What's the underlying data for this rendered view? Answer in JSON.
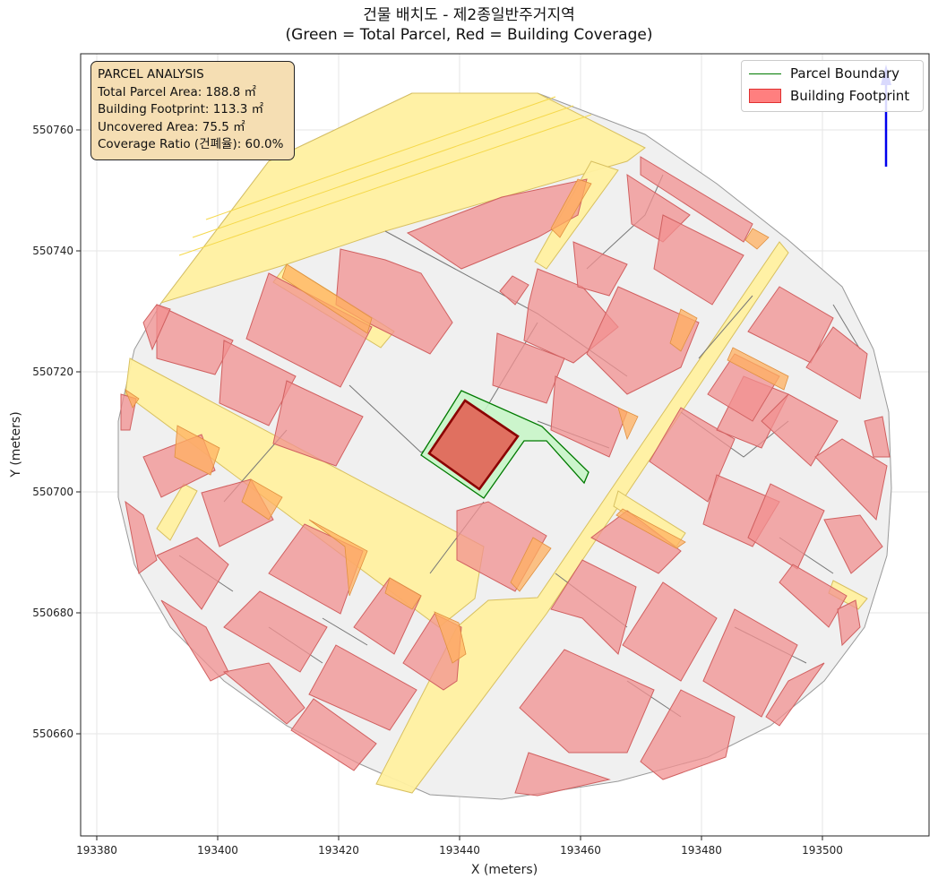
{
  "title": {
    "line1": "건물 배치도 - 제2종일반주거지역",
    "line2": "(Green = Total Parcel, Red = Building Coverage)"
  },
  "axes": {
    "xlabel": "X (meters)",
    "ylabel": "Y (meters)",
    "xticks": [
      "193380",
      "193400",
      "193420",
      "193440",
      "193460",
      "193480",
      "193500"
    ],
    "yticks": [
      "550660",
      "550680",
      "550700",
      "550720",
      "550740",
      "550760"
    ]
  },
  "info_box": {
    "heading": "PARCEL ANALYSIS",
    "total_parcel": "Total Parcel Area: 188.8 ㎡",
    "building_footprint": "Building Footprint: 113.3 ㎡",
    "uncovered": "Uncovered Area: 75.5 ㎡",
    "coverage": "Coverage Ratio (건폐율): 60.0%"
  },
  "legend": {
    "parcel_boundary": "Parcel Boundary",
    "building_footprint": "Building Footprint"
  },
  "colors": {
    "parcel_edge": "#007a00",
    "parcel_fill": "#c8f5c8",
    "building_fill": "#ff7f7f",
    "target_building": "#e07060",
    "road_fill": "#fff0a0",
    "block_fill": "#f0f0f0",
    "north_arrow": "#0000ee",
    "info_box_bg": "#f5deb3"
  },
  "chart_data": {
    "type": "map",
    "x_range": [
      193377,
      193517
    ],
    "y_range": [
      550643,
      550773
    ],
    "grid": true,
    "legend_position": "top-right",
    "target_parcel": {
      "total_area_m2": 188.8,
      "building_footprint_m2": 113.3,
      "uncovered_area_m2": 75.5,
      "coverage_ratio_pct": 60.0
    }
  }
}
